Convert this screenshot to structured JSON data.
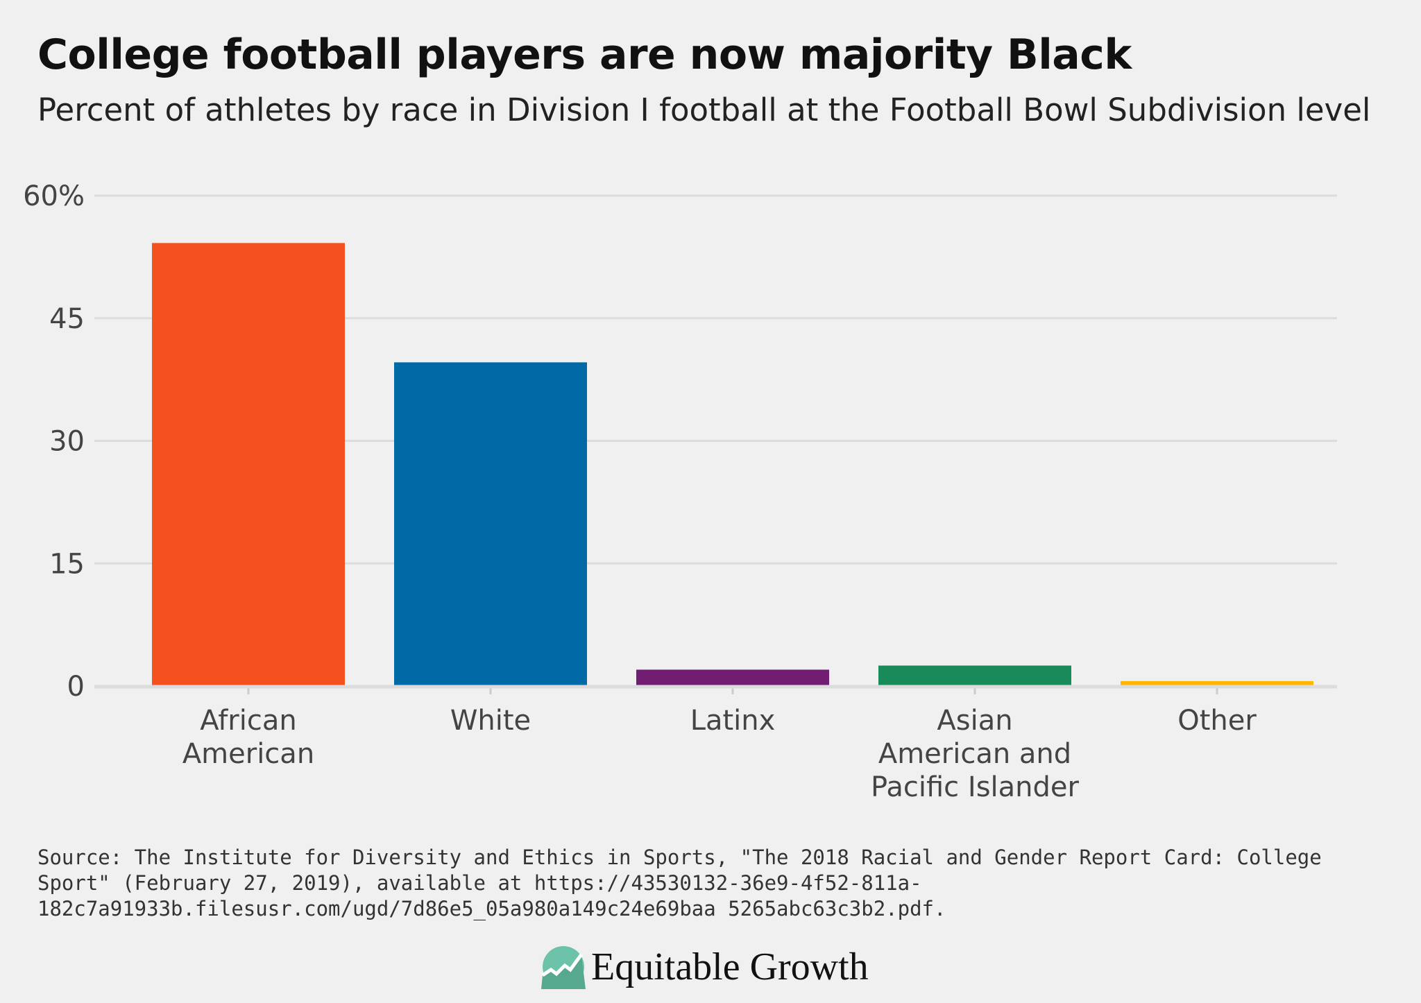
{
  "title": "College football players are now majority Black",
  "subtitle": "Percent of athletes by race in Division I football at the Football Bowl Subdivision level",
  "chart_data": {
    "type": "bar",
    "categories": [
      "African American",
      "White",
      "Latinx",
      "Asian American and Pacific Islander",
      "Other"
    ],
    "category_lines": [
      [
        "African",
        "American"
      ],
      [
        "White"
      ],
      [
        "Latinx"
      ],
      [
        "Asian",
        "American and",
        "Pacific Islander"
      ],
      [
        "Other"
      ]
    ],
    "values": [
      54.2,
      39.6,
      2.0,
      2.5,
      0.6
    ],
    "colors": [
      "#f5511e",
      "#0069a6",
      "#711d72",
      "#198b5a",
      "#ffb600"
    ],
    "ylim": [
      0,
      60
    ],
    "yticks": [
      0,
      15,
      30,
      45,
      60
    ],
    "ytick_labels": [
      "0",
      "15",
      "30",
      "45",
      "60%"
    ],
    "grid": true,
    "xlabel": "",
    "ylabel": ""
  },
  "source": "Source: The Institute for Diversity and Ethics in Sports, \"The 2018 Racial and Gender Report Card: College Sport\" (February 27, 2019), available at https://43530132-36e9-4f52-811a-182c7a91933b.filesusr.com/ugd/7d86e5_05a980a149c24e69baa 5265abc63c3b2.pdf.",
  "logo": {
    "text": "Equitable Growth",
    "color": "#6cc3a9"
  }
}
